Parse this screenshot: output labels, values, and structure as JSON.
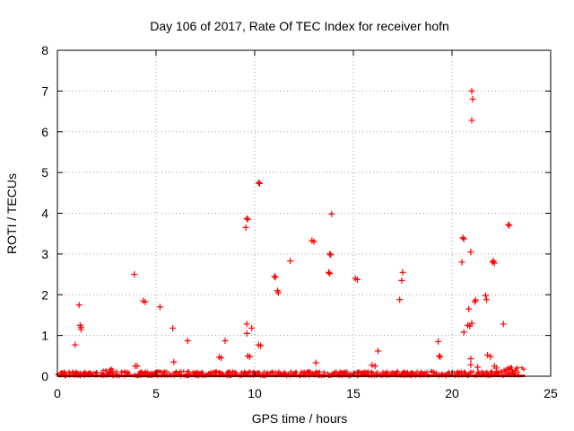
{
  "chart_data": {
    "type": "scatter",
    "title": "Day 106 of 2017, Rate Of TEC Index for receiver hofn",
    "xlabel": "GPS time / hours",
    "ylabel": "ROTI / TECUs",
    "xlim": [
      0,
      25
    ],
    "ylim": [
      0,
      8
    ],
    "xticks": [
      0,
      5,
      10,
      15,
      20,
      25
    ],
    "yticks": [
      0,
      1,
      2,
      3,
      4,
      5,
      6,
      7,
      8
    ],
    "grid": true,
    "marker": "+",
    "color": "#ff0000",
    "points": [
      [
        0.9,
        0.77
      ],
      [
        1.1,
        1.75
      ],
      [
        1.15,
        1.25
      ],
      [
        1.2,
        1.2
      ],
      [
        1.2,
        1.15
      ],
      [
        3.9,
        2.5
      ],
      [
        3.95,
        0.25
      ],
      [
        4.05,
        0.25
      ],
      [
        4.35,
        1.85
      ],
      [
        4.45,
        1.82
      ],
      [
        5.2,
        1.7
      ],
      [
        5.85,
        1.18
      ],
      [
        5.9,
        0.35
      ],
      [
        6.6,
        0.87
      ],
      [
        8.2,
        0.47
      ],
      [
        8.3,
        0.45
      ],
      [
        8.5,
        0.87
      ],
      [
        9.55,
        3.65
      ],
      [
        9.6,
        3.87
      ],
      [
        9.65,
        3.85
      ],
      [
        9.6,
        1.28
      ],
      [
        9.6,
        1.05
      ],
      [
        9.65,
        0.5
      ],
      [
        9.75,
        0.48
      ],
      [
        9.85,
        1.18
      ],
      [
        10.2,
        4.75
      ],
      [
        10.25,
        4.73
      ],
      [
        10.2,
        0.77
      ],
      [
        10.3,
        0.75
      ],
      [
        11.0,
        2.45
      ],
      [
        11.05,
        2.43
      ],
      [
        11.15,
        2.1
      ],
      [
        11.2,
        2.05
      ],
      [
        11.8,
        2.83
      ],
      [
        12.9,
        3.33
      ],
      [
        13.0,
        3.3
      ],
      [
        13.1,
        0.33
      ],
      [
        13.75,
        2.55
      ],
      [
        13.8,
        2.52
      ],
      [
        13.8,
        3.0
      ],
      [
        13.85,
        2.98
      ],
      [
        13.9,
        3.98
      ],
      [
        15.1,
        2.4
      ],
      [
        15.2,
        2.37
      ],
      [
        15.95,
        0.27
      ],
      [
        16.1,
        0.25
      ],
      [
        16.25,
        0.62
      ],
      [
        17.35,
        1.88
      ],
      [
        17.45,
        2.35
      ],
      [
        17.5,
        2.55
      ],
      [
        19.3,
        0.85
      ],
      [
        19.35,
        0.5
      ],
      [
        19.4,
        0.47
      ],
      [
        20.5,
        2.8
      ],
      [
        20.55,
        3.4
      ],
      [
        20.6,
        3.37
      ],
      [
        20.6,
        1.08
      ],
      [
        20.8,
        1.25
      ],
      [
        20.85,
        1.65
      ],
      [
        20.9,
        1.23
      ],
      [
        20.95,
        3.05
      ],
      [
        21.0,
        1.3
      ],
      [
        20.95,
        0.43
      ],
      [
        20.95,
        0.28
      ],
      [
        21.0,
        6.28
      ],
      [
        21.0,
        7.0
      ],
      [
        21.05,
        6.8
      ],
      [
        21.15,
        1.83
      ],
      [
        21.2,
        1.87
      ],
      [
        21.3,
        0.22
      ],
      [
        21.7,
        1.98
      ],
      [
        21.75,
        1.88
      ],
      [
        21.8,
        0.52
      ],
      [
        21.95,
        0.48
      ],
      [
        22.05,
        2.8
      ],
      [
        22.1,
        2.83
      ],
      [
        22.15,
        2.78
      ],
      [
        22.15,
        0.25
      ],
      [
        22.25,
        0.2
      ],
      [
        22.6,
        1.28
      ],
      [
        22.85,
        3.72
      ],
      [
        22.9,
        3.7
      ]
    ],
    "baseline_band": {
      "x_range": [
        0,
        23.7
      ],
      "y_range": [
        0,
        0.12
      ]
    }
  }
}
